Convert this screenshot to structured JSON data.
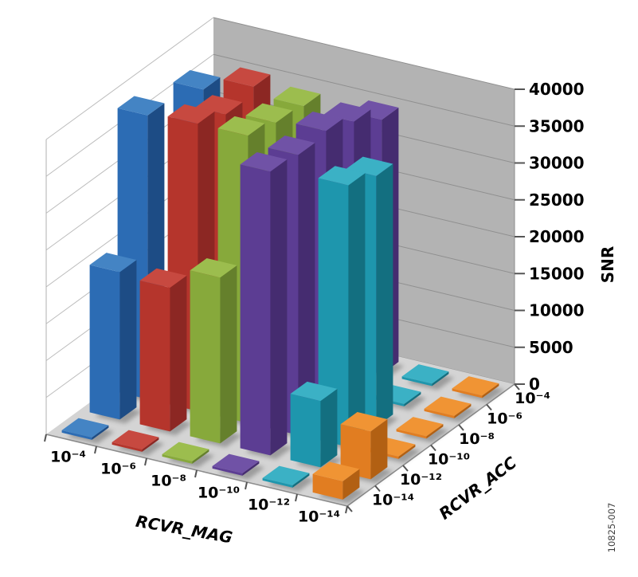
{
  "page": {
    "background": "#ffffff",
    "watermark": "10825-007"
  },
  "chart_data": {
    "type": "bar",
    "projection": "3d-column",
    "title": "",
    "xlabel": "RCVR_MAG",
    "zlabel": "RCVR_ACC",
    "ylabel": "SNR",
    "ylim": [
      0,
      40000
    ],
    "yticks": [
      0,
      5000,
      10000,
      15000,
      20000,
      25000,
      30000,
      35000,
      40000
    ],
    "grid": true,
    "legend": "none",
    "x_categories": [
      "10⁻⁴",
      "10⁻⁶",
      "10⁻⁸",
      "10⁻¹⁰",
      "10⁻¹²",
      "10⁻¹⁴"
    ],
    "z_categories_back_to_front": [
      "10⁻⁴",
      "10⁻⁶",
      "10⁻⁸",
      "10⁻¹⁰",
      "10⁻¹²",
      "10⁻¹⁴"
    ],
    "note": "values_back_to_front[i] = SNR at RCVR_ACC = z_categories_back_to_front[i]; 0 renders as a flat floor tile",
    "walls": {
      "left_wall": "#ffffff",
      "back_wall": "#b3b3b3",
      "floor": "#d4d4d4",
      "left_gridline": "#bcbcbc",
      "back_gridline": "#8f8f8f",
      "axis_line": "#8c8c8c"
    },
    "series": [
      {
        "name": "RCVR_MAG = 10⁻⁴",
        "color": "#2c6cb4",
        "color_side": "#1d4c85",
        "color_top": "#4484c4",
        "values_back_to_front": [
          0,
          36500,
          0,
          38500,
          20000,
          0
        ]
      },
      {
        "name": "RCVR_MAG = 10⁻⁶",
        "color": "#b5352c",
        "color_side": "#8c2723",
        "color_top": "#c74940",
        "values_back_to_front": [
          0,
          38500,
          37500,
          39000,
          19500,
          0
        ]
      },
      {
        "name": "RCVR_MAG = 10⁻⁸",
        "color": "#87a93b",
        "color_side": "#65802c",
        "color_top": "#9cbd4e",
        "values_back_to_front": [
          0,
          37500,
          38000,
          39000,
          22500,
          0
        ]
      },
      {
        "name": "RCVR_MAG = 10⁻¹⁰",
        "color": "#5c3d93",
        "color_side": "#452c70",
        "color_top": "#7052a6",
        "values_back_to_front": [
          34500,
          37000,
          38500,
          38000,
          38500,
          0
        ]
      },
      {
        "name": "RCVR_MAG = 10⁻¹²",
        "color": "#1e96ad",
        "color_side": "#136f80",
        "color_top": "#3bb1c5",
        "values_back_to_front": [
          0,
          0,
          34000,
          35500,
          9000,
          0
        ]
      },
      {
        "name": "RCVR_MAG = 10⁻¹⁴",
        "color": "#e17d21",
        "color_side": "#b26013",
        "color_top": "#f09434",
        "values_back_to_front": [
          0,
          0,
          0,
          0,
          6500,
          2500
        ]
      }
    ]
  }
}
